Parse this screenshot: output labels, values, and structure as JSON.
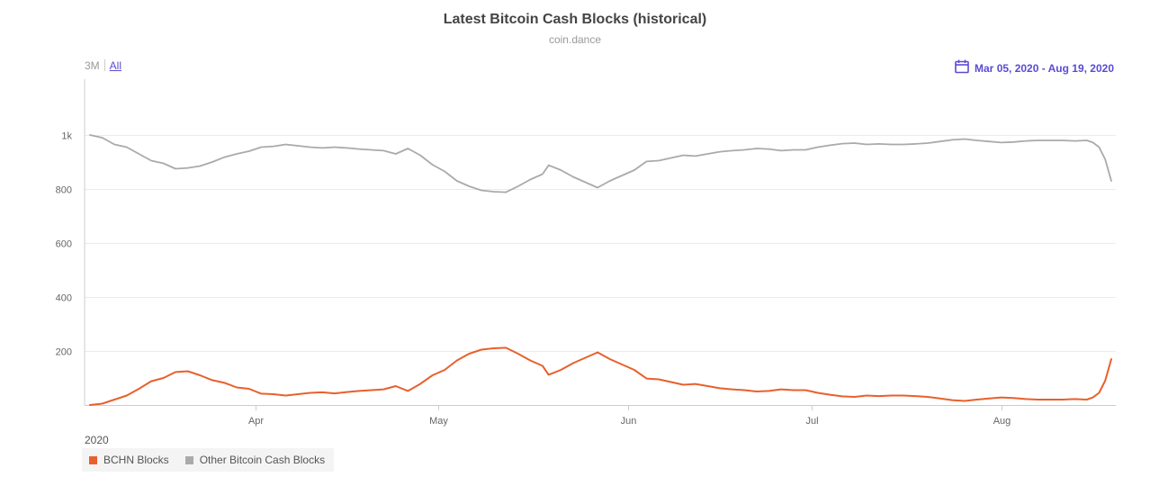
{
  "header": {
    "title": "Latest Bitcoin Cash Blocks (historical)",
    "subtitle": "coin.dance"
  },
  "range_selector": {
    "options": [
      "3M",
      "All"
    ],
    "active": "All"
  },
  "date_range": {
    "label": "Mar 05, 2020 - Aug 19, 2020",
    "icon": "calendar-icon"
  },
  "chart_data": {
    "type": "line",
    "title": "Latest Bitcoin Cash Blocks (historical)",
    "subtitle": "coin.dance",
    "x_range": [
      "2020-03-05",
      "2020-08-19"
    ],
    "ylim": [
      0,
      1200
    ],
    "y_ticks": [
      200,
      400,
      600,
      800,
      1000
    ],
    "y_tick_labels": [
      "200",
      "400",
      "600",
      "800",
      "1k"
    ],
    "x_ticks": [
      {
        "date": "2020-04-01",
        "label": "Apr"
      },
      {
        "date": "2020-05-01",
        "label": "May"
      },
      {
        "date": "2020-06-01",
        "label": "Jun"
      },
      {
        "date": "2020-07-01",
        "label": "Jul"
      },
      {
        "date": "2020-08-01",
        "label": "Aug"
      }
    ],
    "x_axis_year": "2020",
    "grid": "horizontal",
    "legend_position": "bottom-left",
    "series": [
      {
        "name": "BCHN Blocks",
        "color": "#e8602c",
        "points": [
          [
            "2020-03-05",
            0
          ],
          [
            "2020-03-07",
            5
          ],
          [
            "2020-03-09",
            20
          ],
          [
            "2020-03-11",
            35
          ],
          [
            "2020-03-13",
            60
          ],
          [
            "2020-03-15",
            88
          ],
          [
            "2020-03-17",
            100
          ],
          [
            "2020-03-19",
            122
          ],
          [
            "2020-03-21",
            125
          ],
          [
            "2020-03-23",
            110
          ],
          [
            "2020-03-25",
            92
          ],
          [
            "2020-03-27",
            82
          ],
          [
            "2020-03-29",
            65
          ],
          [
            "2020-03-31",
            60
          ],
          [
            "2020-04-02",
            42
          ],
          [
            "2020-04-04",
            40
          ],
          [
            "2020-04-06",
            35
          ],
          [
            "2020-04-08",
            40
          ],
          [
            "2020-04-10",
            45
          ],
          [
            "2020-04-12",
            47
          ],
          [
            "2020-04-14",
            43
          ],
          [
            "2020-04-16",
            48
          ],
          [
            "2020-04-18",
            52
          ],
          [
            "2020-04-20",
            55
          ],
          [
            "2020-04-22",
            58
          ],
          [
            "2020-04-24",
            70
          ],
          [
            "2020-04-26",
            52
          ],
          [
            "2020-04-28",
            78
          ],
          [
            "2020-04-30",
            110
          ],
          [
            "2020-05-02",
            130
          ],
          [
            "2020-05-04",
            165
          ],
          [
            "2020-05-06",
            190
          ],
          [
            "2020-05-08",
            205
          ],
          [
            "2020-05-10",
            210
          ],
          [
            "2020-05-12",
            212
          ],
          [
            "2020-05-14",
            190
          ],
          [
            "2020-05-16",
            165
          ],
          [
            "2020-05-18",
            145
          ],
          [
            "2020-05-19",
            112
          ],
          [
            "2020-05-21",
            130
          ],
          [
            "2020-05-23",
            155
          ],
          [
            "2020-05-25",
            175
          ],
          [
            "2020-05-27",
            195
          ],
          [
            "2020-05-29",
            170
          ],
          [
            "2020-05-31",
            150
          ],
          [
            "2020-06-02",
            130
          ],
          [
            "2020-06-04",
            98
          ],
          [
            "2020-06-06",
            95
          ],
          [
            "2020-06-08",
            85
          ],
          [
            "2020-06-10",
            75
          ],
          [
            "2020-06-12",
            78
          ],
          [
            "2020-06-14",
            70
          ],
          [
            "2020-06-16",
            62
          ],
          [
            "2020-06-18",
            58
          ],
          [
            "2020-06-20",
            55
          ],
          [
            "2020-06-22",
            50
          ],
          [
            "2020-06-24",
            52
          ],
          [
            "2020-06-26",
            58
          ],
          [
            "2020-06-28",
            55
          ],
          [
            "2020-06-30",
            55
          ],
          [
            "2020-07-02",
            45
          ],
          [
            "2020-07-04",
            38
          ],
          [
            "2020-07-06",
            32
          ],
          [
            "2020-07-08",
            30
          ],
          [
            "2020-07-10",
            35
          ],
          [
            "2020-07-12",
            33
          ],
          [
            "2020-07-14",
            35
          ],
          [
            "2020-07-16",
            35
          ],
          [
            "2020-07-18",
            33
          ],
          [
            "2020-07-20",
            30
          ],
          [
            "2020-07-22",
            24
          ],
          [
            "2020-07-24",
            18
          ],
          [
            "2020-07-26",
            15
          ],
          [
            "2020-07-28",
            20
          ],
          [
            "2020-07-30",
            24
          ],
          [
            "2020-08-01",
            28
          ],
          [
            "2020-08-03",
            26
          ],
          [
            "2020-08-05",
            22
          ],
          [
            "2020-08-07",
            20
          ],
          [
            "2020-08-09",
            20
          ],
          [
            "2020-08-11",
            20
          ],
          [
            "2020-08-13",
            22
          ],
          [
            "2020-08-15",
            20
          ],
          [
            "2020-08-16",
            28
          ],
          [
            "2020-08-17",
            45
          ],
          [
            "2020-08-18",
            90
          ],
          [
            "2020-08-19",
            170
          ]
        ]
      },
      {
        "name": "Other Bitcoin Cash Blocks",
        "color": "#aaaaaa",
        "points": [
          [
            "2020-03-05",
            1000
          ],
          [
            "2020-03-07",
            990
          ],
          [
            "2020-03-09",
            965
          ],
          [
            "2020-03-11",
            955
          ],
          [
            "2020-03-13",
            930
          ],
          [
            "2020-03-15",
            905
          ],
          [
            "2020-03-17",
            895
          ],
          [
            "2020-03-19",
            875
          ],
          [
            "2020-03-21",
            878
          ],
          [
            "2020-03-23",
            885
          ],
          [
            "2020-03-25",
            900
          ],
          [
            "2020-03-27",
            918
          ],
          [
            "2020-03-29",
            930
          ],
          [
            "2020-03-31",
            940
          ],
          [
            "2020-04-02",
            955
          ],
          [
            "2020-04-04",
            958
          ],
          [
            "2020-04-06",
            965
          ],
          [
            "2020-04-08",
            960
          ],
          [
            "2020-04-10",
            955
          ],
          [
            "2020-04-12",
            952
          ],
          [
            "2020-04-14",
            955
          ],
          [
            "2020-04-16",
            952
          ],
          [
            "2020-04-18",
            948
          ],
          [
            "2020-04-20",
            945
          ],
          [
            "2020-04-22",
            942
          ],
          [
            "2020-04-24",
            930
          ],
          [
            "2020-04-26",
            950
          ],
          [
            "2020-04-28",
            925
          ],
          [
            "2020-04-30",
            890
          ],
          [
            "2020-05-02",
            865
          ],
          [
            "2020-05-04",
            830
          ],
          [
            "2020-05-06",
            810
          ],
          [
            "2020-05-08",
            795
          ],
          [
            "2020-05-10",
            790
          ],
          [
            "2020-05-12",
            788
          ],
          [
            "2020-05-14",
            810
          ],
          [
            "2020-05-16",
            835
          ],
          [
            "2020-05-18",
            855
          ],
          [
            "2020-05-19",
            888
          ],
          [
            "2020-05-21",
            870
          ],
          [
            "2020-05-23",
            845
          ],
          [
            "2020-05-25",
            825
          ],
          [
            "2020-05-27",
            805
          ],
          [
            "2020-05-29",
            830
          ],
          [
            "2020-05-31",
            850
          ],
          [
            "2020-06-02",
            870
          ],
          [
            "2020-06-04",
            902
          ],
          [
            "2020-06-06",
            905
          ],
          [
            "2020-06-08",
            915
          ],
          [
            "2020-06-10",
            925
          ],
          [
            "2020-06-12",
            922
          ],
          [
            "2020-06-14",
            930
          ],
          [
            "2020-06-16",
            938
          ],
          [
            "2020-06-18",
            942
          ],
          [
            "2020-06-20",
            945
          ],
          [
            "2020-06-22",
            950
          ],
          [
            "2020-06-24",
            948
          ],
          [
            "2020-06-26",
            942
          ],
          [
            "2020-06-28",
            945
          ],
          [
            "2020-06-30",
            945
          ],
          [
            "2020-07-02",
            955
          ],
          [
            "2020-07-04",
            962
          ],
          [
            "2020-07-06",
            968
          ],
          [
            "2020-07-08",
            970
          ],
          [
            "2020-07-10",
            965
          ],
          [
            "2020-07-12",
            967
          ],
          [
            "2020-07-14",
            965
          ],
          [
            "2020-07-16",
            965
          ],
          [
            "2020-07-18",
            967
          ],
          [
            "2020-07-20",
            970
          ],
          [
            "2020-07-22",
            976
          ],
          [
            "2020-07-24",
            982
          ],
          [
            "2020-07-26",
            985
          ],
          [
            "2020-07-28",
            980
          ],
          [
            "2020-07-30",
            976
          ],
          [
            "2020-08-01",
            972
          ],
          [
            "2020-08-03",
            974
          ],
          [
            "2020-08-05",
            978
          ],
          [
            "2020-08-07",
            980
          ],
          [
            "2020-08-09",
            980
          ],
          [
            "2020-08-11",
            980
          ],
          [
            "2020-08-13",
            978
          ],
          [
            "2020-08-15",
            980
          ],
          [
            "2020-08-16",
            972
          ],
          [
            "2020-08-17",
            955
          ],
          [
            "2020-08-18",
            910
          ],
          [
            "2020-08-19",
            830
          ]
        ]
      }
    ]
  }
}
